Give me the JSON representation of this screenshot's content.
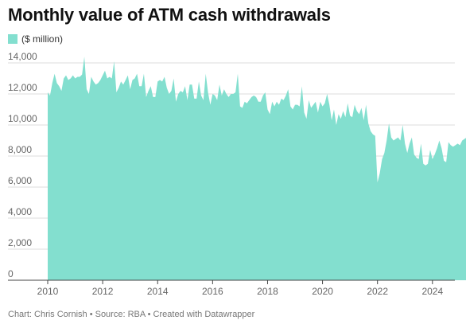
{
  "title": "Monthly value of ATM cash withdrawals",
  "legend": {
    "label": "($ million)"
  },
  "footer": "Chart: Chris Cornish • Source: RBA • Created with Datawrapper",
  "colors": {
    "area": "#83dfcf",
    "grid": "#dcdcdc",
    "axis": "#444444",
    "text": "#666666"
  },
  "chart_data": {
    "type": "area",
    "title": "Monthly value of ATM cash withdrawals",
    "ylabel": "($ million)",
    "xlabel": "",
    "x_start": "2010-01",
    "x_end": "2024-08",
    "xlim": [
      2010,
      2024.7
    ],
    "ylim": [
      0,
      14000
    ],
    "grid": true,
    "legend_position": "top-left",
    "x_ticks": [
      "2010",
      "2012",
      "2014",
      "2016",
      "2018",
      "2020",
      "2022",
      "2024"
    ],
    "y_ticks": [
      "0",
      "2,000",
      "4,000",
      "6,000",
      "8,000",
      "10,000",
      "12,000",
      "14,000"
    ],
    "series": [
      {
        "name": "($ million)",
        "values": [
          12100,
          11900,
          12700,
          13300,
          12700,
          12500,
          12200,
          13000,
          13200,
          12900,
          13000,
          13200,
          13000,
          13100,
          13100,
          13250,
          14400,
          12300,
          12000,
          13100,
          12800,
          12600,
          12700,
          12900,
          13200,
          13500,
          13000,
          13100,
          13000,
          14100,
          12100,
          12400,
          12800,
          12600,
          12900,
          13200,
          12300,
          12900,
          13000,
          13300,
          12500,
          12500,
          13300,
          11800,
          12200,
          12500,
          11800,
          11800,
          12800,
          12900,
          12800,
          13100,
          12400,
          12000,
          12200,
          13000,
          11500,
          12000,
          12200,
          12100,
          12500,
          11600,
          12600,
          12600,
          11700,
          11700,
          12800,
          11900,
          11600,
          13300,
          12100,
          11300,
          12000,
          11900,
          11600,
          12600,
          11900,
          12300,
          12000,
          11800,
          12000,
          12000,
          12100,
          13300,
          11200,
          11100,
          11500,
          11400,
          11600,
          11800,
          11900,
          11800,
          11500,
          11500,
          11900,
          12100,
          11000,
          10700,
          11500,
          11200,
          11500,
          11300,
          11700,
          11600,
          11900,
          12300,
          11200,
          11000,
          11300,
          11300,
          11200,
          12500,
          10800,
          10400,
          11600,
          11100,
          11300,
          11500,
          10800,
          11500,
          11200,
          11400,
          12000,
          11300,
          10300,
          11000,
          10000,
          10700,
          10400,
          10900,
          10500,
          11400,
          10600,
          10500,
          11300,
          10900,
          10700,
          11100,
          10300,
          11300,
          10100,
          9600,
          9400,
          9300,
          6300,
          6900,
          7800,
          8200,
          9000,
          10100,
          9200,
          9000,
          9100,
          9200,
          9000,
          10000,
          8800,
          8200,
          8800,
          9200,
          8100,
          7900,
          7800,
          8800,
          7500,
          7400,
          7500,
          8400,
          7800,
          8100,
          8500,
          9000,
          8500,
          7700,
          7600,
          8900,
          8700,
          8600,
          8700,
          8800,
          8700,
          9000,
          9100,
          9200,
          8400,
          8300,
          8400,
          9200,
          8100,
          8000,
          8100,
          9200,
          8500,
          8800,
          8800,
          9000,
          8800,
          8700,
          8800,
          9700,
          8400,
          8300,
          8700,
          9100,
          8900,
          8600,
          8900,
          9000,
          8800,
          8700,
          9400,
          9400,
          8800
        ]
      }
    ]
  }
}
